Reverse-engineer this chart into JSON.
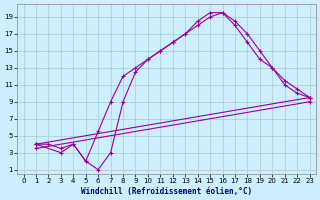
{
  "xlabel": "Windchill (Refroidissement éolien,°C)",
  "bg_color": "#cceeff",
  "line_color": "#990099",
  "grid_color": "#aacccc",
  "xlim": [
    -0.5,
    23.5
  ],
  "ylim": [
    0.5,
    20.5
  ],
  "xticks": [
    0,
    1,
    2,
    3,
    4,
    5,
    6,
    7,
    8,
    9,
    10,
    11,
    12,
    13,
    14,
    15,
    16,
    17,
    18,
    19,
    20,
    21,
    22,
    23
  ],
  "yticks": [
    1,
    3,
    5,
    7,
    9,
    11,
    13,
    15,
    17,
    19
  ],
  "line1_x": [
    1,
    2,
    3,
    4,
    5,
    6,
    7,
    8,
    9,
    10,
    11,
    12,
    13,
    14,
    15,
    16,
    17,
    18,
    19,
    20,
    21,
    22,
    23
  ],
  "line1_y": [
    4,
    4,
    3.5,
    4,
    2,
    1,
    3,
    9,
    12.5,
    14,
    15,
    16,
    17,
    18.5,
    19.5,
    19.5,
    18.5,
    17,
    15,
    13,
    11.5,
    10.5,
    9.5
  ],
  "line2_x": [
    1,
    3,
    4,
    5,
    6,
    7,
    8,
    9,
    10,
    11,
    12,
    13,
    14,
    15,
    16,
    17,
    18,
    19,
    20,
    21,
    22,
    23
  ],
  "line2_y": [
    4,
    3,
    4,
    2,
    5.5,
    9,
    12,
    13,
    14,
    15,
    16,
    17,
    18,
    19,
    19.5,
    18,
    16,
    14,
    13,
    11,
    10,
    9.5
  ],
  "line3_x": [
    1,
    23
  ],
  "line3_y": [
    4,
    9.5
  ],
  "line4_x": [
    1,
    23
  ],
  "line4_y": [
    3.5,
    9
  ],
  "xlabel_color": "#000080",
  "xlabel_fontsize": 5.5,
  "tick_fontsize": 5
}
